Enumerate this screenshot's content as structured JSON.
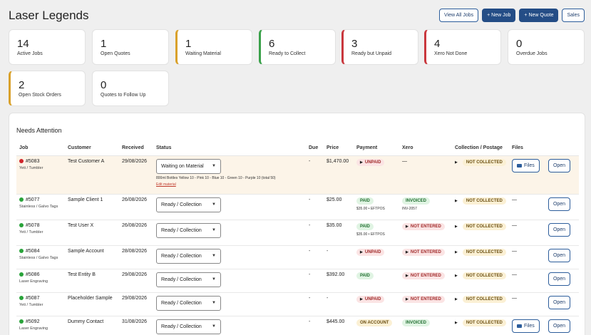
{
  "app_title": "Laser Legends",
  "actions": {
    "view_all_jobs": "View All Jobs",
    "new_job": "+ New Job",
    "new_quote": "+ New Quote",
    "sales": "Sales"
  },
  "stats": [
    {
      "num": "14",
      "label": "Active Jobs"
    },
    {
      "num": "1",
      "label": "Open Quotes"
    },
    {
      "num": "1",
      "label": "Waiting Material"
    },
    {
      "num": "6",
      "label": "Ready to Collect"
    },
    {
      "num": "3",
      "label": "Ready but Unpaid"
    },
    {
      "num": "4",
      "label": "Xero Not Done"
    },
    {
      "num": "0",
      "label": "Overdue Jobs"
    },
    {
      "num": "2",
      "label": "Open Stock Orders"
    },
    {
      "num": "0",
      "label": "Quotes to Follow Up"
    }
  ],
  "needs_attention": {
    "title": "Needs Attention",
    "columns": [
      "Job",
      "Customer",
      "Received",
      "Status",
      "Due",
      "Price",
      "Payment",
      "Xero",
      "Collection / Postage",
      "Files",
      ""
    ],
    "rows": [
      {
        "job": "#5083",
        "sub": "Yeti / Tumbler",
        "dot": "red",
        "customer": "Test Customer A",
        "received": "29/08/2026",
        "status": "Waiting on Material",
        "note": "800ml Bottles Yellow 10 - Pink 10 - Blue 10 - Green 10 - Purple 10 (total 50)",
        "edit": "Edit material",
        "due": "-",
        "price": "$1,470.00",
        "payment": "UNPAID",
        "payment_sub": "",
        "xero": "—",
        "xero_sub": "",
        "collection": "NOT COLLECTED",
        "files": "Files",
        "open": "Open"
      },
      {
        "job": "#5077",
        "sub": "Stainless / Galvo Tags",
        "dot": "green",
        "customer": "Sample Client 1",
        "received": "26/08/2026",
        "status": "Ready / Collection",
        "due": "-",
        "price": "$25.00",
        "payment": "PAID",
        "payment_sub": "$35.00 • EFTPOS",
        "xero": "INVOICED",
        "xero_sub": "INV-2057",
        "collection": "NOT COLLECTED",
        "files": "—",
        "open": "Open"
      },
      {
        "job": "#5078",
        "sub": "Yeti / Tumbler",
        "dot": "green",
        "customer": "Test User X",
        "received": "26/08/2026",
        "status": "Ready / Collection",
        "due": "-",
        "price": "$35.00",
        "payment": "PAID",
        "payment_sub": "$35.00 • EFTPOS",
        "xero": "NOT ENTERED",
        "xero_sub": "",
        "collection": "NOT COLLECTED",
        "files": "—",
        "open": "Open"
      },
      {
        "job": "#5084",
        "sub": "Stainless / Galvo Tags",
        "dot": "green",
        "customer": "Sample Account",
        "received": "28/08/2026",
        "status": "Ready / Collection",
        "due": "-",
        "price": "-",
        "payment": "UNPAID",
        "payment_sub": "",
        "xero": "NOT ENTERED",
        "xero_sub": "",
        "collection": "NOT COLLECTED",
        "files": "—",
        "open": "Open"
      },
      {
        "job": "#5086",
        "sub": "Laser Engraving",
        "dot": "green",
        "customer": "Test Entity B",
        "received": "29/08/2026",
        "status": "Ready / Collection",
        "due": "-",
        "price": "$392.00",
        "payment": "PAID",
        "payment_sub": "",
        "xero": "NOT ENTERED",
        "xero_sub": "",
        "collection": "NOT COLLECTED",
        "files": "—",
        "open": "Open"
      },
      {
        "job": "#5087",
        "sub": "Yeti / Tumbler",
        "dot": "green",
        "customer": "Placeholder Sample",
        "received": "29/08/2026",
        "status": "Ready / Collection",
        "due": "-",
        "price": "-",
        "payment": "UNPAID",
        "payment_sub": "",
        "xero": "NOT ENTERED",
        "xero_sub": "",
        "collection": "NOT COLLECTED",
        "files": "—",
        "open": "Open"
      },
      {
        "job": "#5092",
        "sub": "Laser Engraving",
        "dot": "green",
        "customer": "Dummy Contact",
        "received": "31/08/2026",
        "status": "Ready / Collection",
        "due": "-",
        "price": "$445.00",
        "payment": "ON ACCOUNT",
        "payment_sub": "",
        "xero": "INVOICED",
        "xero_sub": "",
        "collection": "NOT COLLECTED",
        "files": "Files",
        "open": "Open"
      }
    ]
  },
  "colors": {
    "primary": "#244d86",
    "amber": "#d9a12b",
    "green": "#3aa14a",
    "red": "#c9373d"
  }
}
